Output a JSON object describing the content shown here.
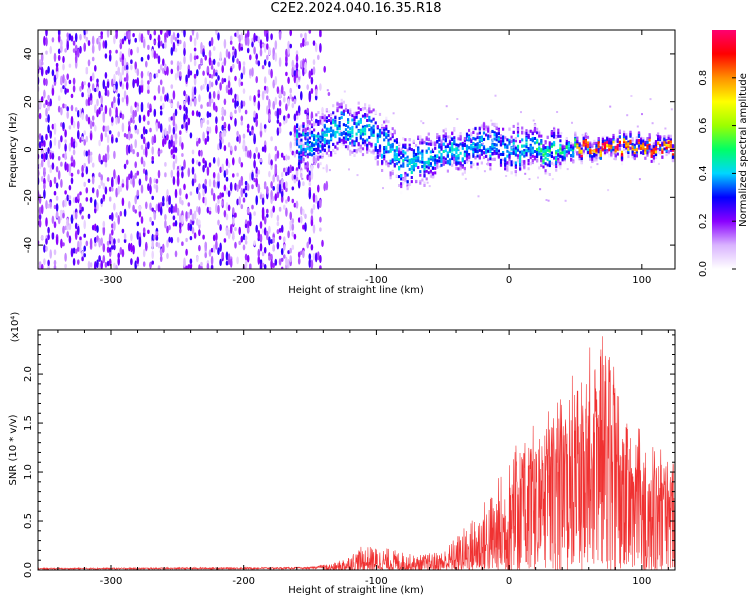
{
  "figure_title": "C2E2.2024.040.16.35.R18",
  "chart_data": [
    {
      "type": "heatmap",
      "title": "",
      "xlabel": "Height of straight line (km)",
      "ylabel": "Frequency (Hz)",
      "xlim": [
        -355,
        125
      ],
      "ylim": [
        -50,
        50
      ],
      "xticks": [
        -300,
        -200,
        -100,
        0,
        100
      ],
      "yticks": [
        -40,
        -20,
        0,
        20,
        40
      ],
      "colorbar": {
        "label": "Normalized spectral amplitude",
        "range": [
          0,
          1
        ],
        "ticks": [
          "0.0",
          "0.2",
          "0.4",
          "0.6",
          "0.8"
        ],
        "colors": [
          "#ffffff",
          "#d9b3ff",
          "#8a00ff",
          "#0000ff",
          "#00d6ff",
          "#00ff66",
          "#9cff00",
          "#ffff00",
          "#ff9000",
          "#ff0000",
          "#ff0070"
        ]
      },
      "features": {
        "noise_region_x": [
          -355,
          -150
        ],
        "signal_center_hz": [
          {
            "x": -150,
            "y": 2
          },
          {
            "x": -120,
            "y": 10
          },
          {
            "x": -100,
            "y": 6
          },
          {
            "x": -80,
            "y": -6
          },
          {
            "x": -60,
            "y": -3
          },
          {
            "x": -40,
            "y": 0
          },
          {
            "x": -20,
            "y": 2
          },
          {
            "x": 0,
            "y": 0
          },
          {
            "x": 30,
            "y": 0
          },
          {
            "x": 60,
            "y": 1
          },
          {
            "x": 90,
            "y": 1
          },
          {
            "x": 125,
            "y": 0
          }
        ]
      }
    },
    {
      "type": "line",
      "title": "",
      "xlabel": "Height of straight line (km)",
      "ylabel": "SNR (10 * v/v)",
      "yunit": "(x10⁴)",
      "xlim": [
        -355,
        125
      ],
      "ylim": [
        0,
        2.45
      ],
      "xticks": [
        -300,
        -200,
        -100,
        0,
        100
      ],
      "yticks": [
        "0.0",
        "0.5",
        "1.0",
        "1.5",
        "2.0"
      ],
      "series": [
        {
          "color": "#f03232",
          "envelope": [
            {
              "x": -355,
              "y": 0.02
            },
            {
              "x": -150,
              "y": 0.03
            },
            {
              "x": -130,
              "y": 0.08
            },
            {
              "x": -110,
              "y": 0.25
            },
            {
              "x": -90,
              "y": 0.22
            },
            {
              "x": -70,
              "y": 0.15
            },
            {
              "x": -50,
              "y": 0.2
            },
            {
              "x": -30,
              "y": 0.5
            },
            {
              "x": -10,
              "y": 0.9
            },
            {
              "x": 0,
              "y": 1.2
            },
            {
              "x": 20,
              "y": 1.5
            },
            {
              "x": 40,
              "y": 1.8
            },
            {
              "x": 55,
              "y": 2.2
            },
            {
              "x": 75,
              "y": 2.45
            },
            {
              "x": 90,
              "y": 1.6
            },
            {
              "x": 110,
              "y": 1.3
            },
            {
              "x": 125,
              "y": 1.1
            }
          ]
        }
      ]
    }
  ]
}
